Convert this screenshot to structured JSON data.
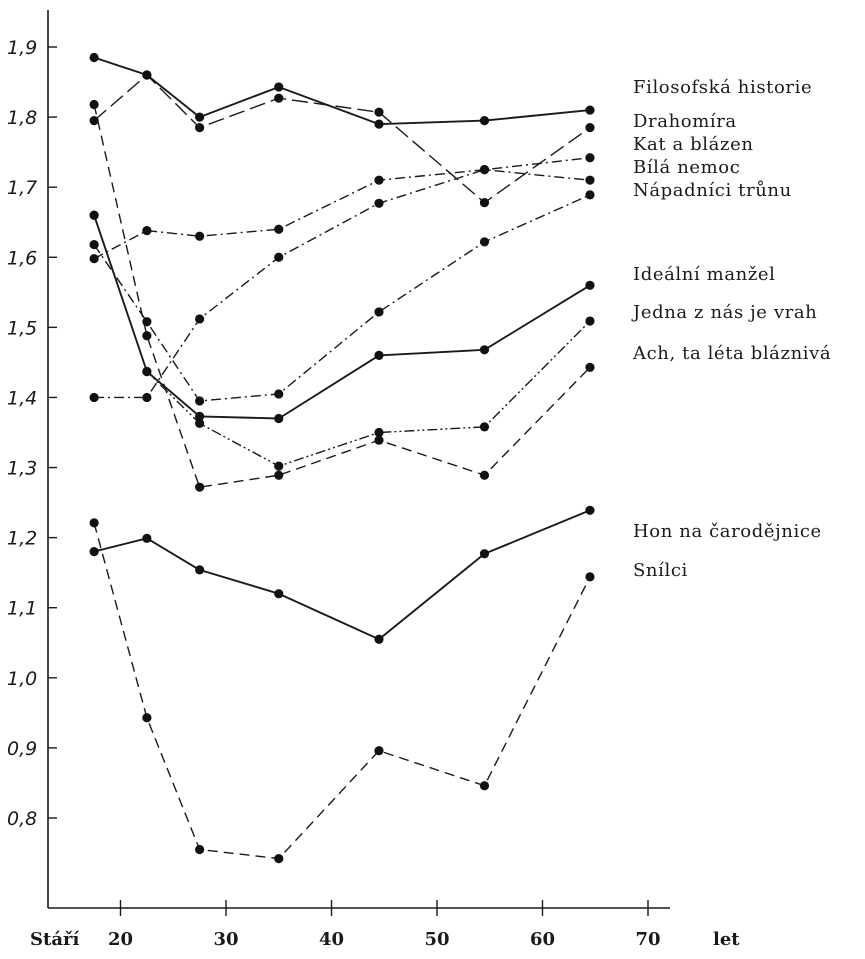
{
  "chart_data": {
    "type": "line",
    "title": "",
    "xlabel": "Stáří",
    "xunit": "let",
    "ylabel": "",
    "xlim": [
      13,
      71
    ],
    "ylim": [
      0.67,
      1.94
    ],
    "xticks": [
      20,
      30,
      40,
      50,
      60,
      70
    ],
    "xtick_labels": [
      "20",
      "30",
      "40",
      "50",
      "60",
      "70"
    ],
    "yticks": [
      0.8,
      0.9,
      1.0,
      1.1,
      1.2,
      1.3,
      1.4,
      1.5,
      1.6,
      1.7,
      1.8,
      1.9
    ],
    "ytick_labels": [
      "0,8",
      "0,9",
      "1,0",
      "1,1",
      "1,2",
      "1,3",
      "1,4",
      "1,5",
      "1,6",
      "1,7",
      "1,8",
      "1,9"
    ],
    "grid": false,
    "legend": "labels at right end of each line",
    "x": [
      17.5,
      22.5,
      27.5,
      35,
      44.5,
      54.5,
      64.5
    ],
    "series": [
      {
        "name": "Filosofská historie",
        "style": "solid",
        "values": [
          1.885,
          1.86,
          1.8,
          1.843,
          1.79,
          1.795,
          1.81
        ]
      },
      {
        "name": "Drahomíra",
        "style": "longdash",
        "values": [
          1.795,
          1.86,
          1.785,
          1.827,
          1.807,
          1.678,
          1.785
        ]
      },
      {
        "name": "Kat a blázen",
        "style": "dashdot",
        "values": [
          1.4,
          1.4,
          1.512,
          1.6,
          1.677,
          1.725,
          1.742
        ]
      },
      {
        "name": "Bílá nemoc",
        "style": "dashdot",
        "values": [
          1.598,
          1.638,
          1.63,
          1.64,
          1.71,
          1.725,
          1.71
        ]
      },
      {
        "name": "Nápadníci trůnu",
        "style": "dashdot",
        "values": [
          1.618,
          1.508,
          1.395,
          1.405,
          1.522,
          1.622,
          1.689
        ]
      },
      {
        "name": "Ideální manžel",
        "style": "solid",
        "values": [
          1.66,
          1.437,
          1.373,
          1.37,
          1.46,
          1.468,
          1.56
        ]
      },
      {
        "name": "Jedna z nás je vrah",
        "style": "dashdotdot",
        "values": [
          1.66,
          1.437,
          1.363,
          1.302,
          1.35,
          1.358,
          1.509
        ]
      },
      {
        "name": "Ach, ta léta bláznivá",
        "style": "dash",
        "values": [
          1.818,
          1.488,
          1.272,
          1.289,
          1.339,
          1.289,
          1.443
        ]
      },
      {
        "name": "Hon na čarodějnice",
        "style": "solid",
        "values": [
          1.18,
          1.199,
          1.154,
          1.12,
          1.055,
          1.177,
          1.239
        ]
      },
      {
        "name": "Snílci",
        "style": "dash",
        "values": [
          1.221,
          0.943,
          0.755,
          0.742,
          0.896,
          0.846,
          1.144
        ]
      }
    ]
  }
}
